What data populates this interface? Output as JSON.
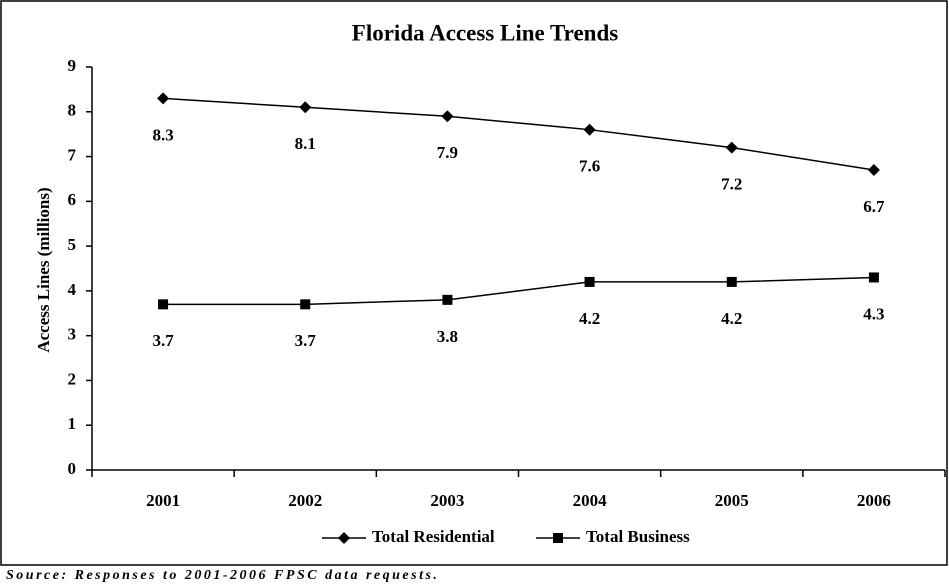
{
  "chart_data": {
    "type": "line",
    "title": "Florida Access Line Trends",
    "ylabel": "Access Lines (millions)",
    "categories": [
      "2001",
      "2002",
      "2003",
      "2004",
      "2005",
      "2006"
    ],
    "series": [
      {
        "name": "Total Residential",
        "color": "#000000",
        "marker": "diamond",
        "values": [
          8.3,
          8.1,
          7.9,
          7.6,
          7.2,
          6.7
        ]
      },
      {
        "name": "Total Business",
        "color": "#000000",
        "marker": "square",
        "values": [
          3.7,
          3.7,
          3.8,
          4.2,
          4.2,
          4.3
        ]
      }
    ],
    "ylim": [
      0,
      9
    ],
    "yticks": [
      0,
      1,
      2,
      3,
      4,
      5,
      6,
      7,
      8,
      9
    ],
    "grid": false,
    "legend": "bottom",
    "source": "Source: Responses to 2001-2006 FPSC data requests."
  }
}
